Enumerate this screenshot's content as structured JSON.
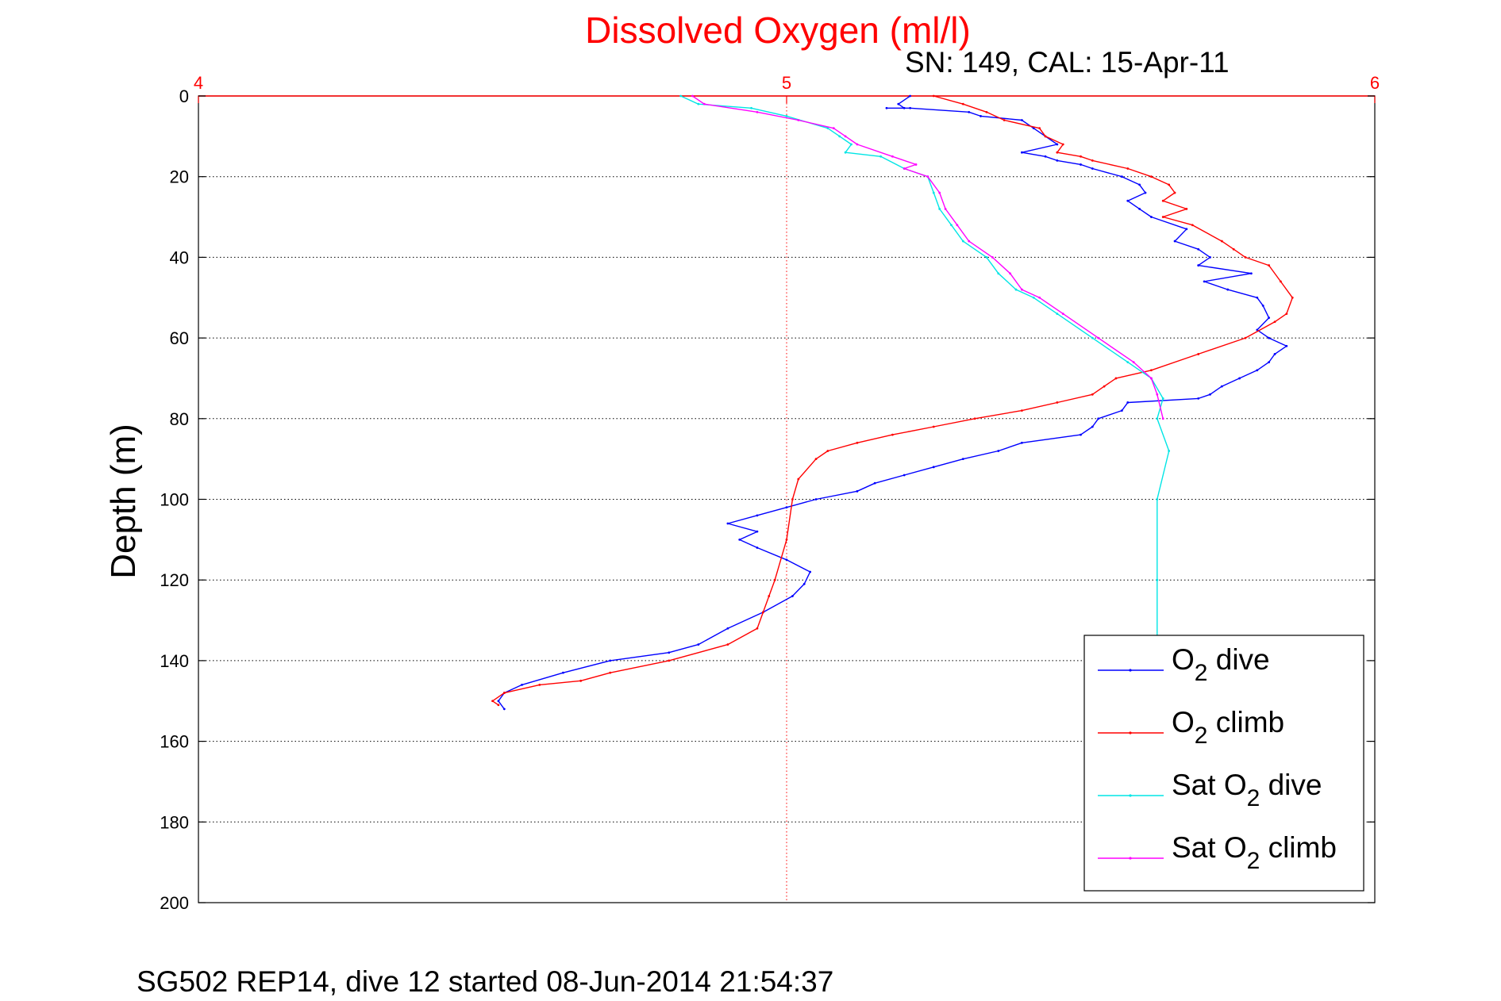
{
  "chart_data": {
    "type": "line",
    "title": "Dissolved Oxygen (ml/l)",
    "subtitle": "SN: 149, CAL: 15-Apr-11",
    "footer": "SG502 REP14, dive 12 started 08-Jun-2014 21:54:37",
    "xlabel": "",
    "ylabel": "Depth (m)",
    "xlim": [
      4,
      6
    ],
    "ylim": [
      0,
      200
    ],
    "y_reversed": true,
    "x_axis_position": "top",
    "xticks": [
      "4",
      "5",
      "6"
    ],
    "yticks": [
      "0",
      "20",
      "40",
      "60",
      "80",
      "100",
      "120",
      "140",
      "160",
      "180",
      "200"
    ],
    "grid": true,
    "legend_position": "bottom-right",
    "colors": {
      "title": "#ff0000",
      "x_axis": "#ff0000",
      "grid_x": "#ff0000",
      "grid_y": "#000000"
    },
    "series": [
      {
        "name": "O2 dive",
        "legend_main": "O",
        "legend_sub": "2",
        "legend_rest": " dive",
        "color": "#0000ff",
        "x": [
          5.21,
          5.19,
          5.2,
          5.17,
          5.21,
          5.31,
          5.33,
          5.4,
          5.42,
          5.44,
          5.46,
          5.4,
          5.44,
          5.46,
          5.5,
          5.52,
          5.57,
          5.6,
          5.61,
          5.58,
          5.6,
          5.62,
          5.68,
          5.66,
          5.7,
          5.72,
          5.7,
          5.79,
          5.71,
          5.75,
          5.8,
          5.81,
          5.82,
          5.8,
          5.82,
          5.85,
          5.83,
          5.82,
          5.8,
          5.77,
          5.74,
          5.72,
          5.7,
          5.58,
          5.57,
          5.53,
          5.52,
          5.5,
          5.4,
          5.36,
          5.3,
          5.25,
          5.2,
          5.15,
          5.12,
          5.05,
          5.0,
          4.95,
          4.9,
          4.95,
          4.92,
          4.95,
          5.0,
          5.04,
          5.03,
          5.01,
          4.96,
          4.9,
          4.85,
          4.8,
          4.7,
          4.62,
          4.55,
          4.52,
          4.51,
          4.52
        ],
        "y": [
          0,
          2,
          3,
          3,
          3,
          4,
          5,
          6,
          8,
          10,
          12,
          14,
          15,
          16,
          17,
          18,
          20,
          22,
          24,
          26,
          28,
          30,
          33,
          36,
          38,
          40,
          42,
          44,
          46,
          48,
          50,
          52,
          55,
          58,
          60,
          62,
          64,
          66,
          68,
          70,
          72,
          74,
          75,
          76,
          78,
          80,
          82,
          84,
          86,
          88,
          90,
          92,
          94,
          96,
          98,
          100,
          102,
          104,
          106,
          108,
          110,
          112,
          115,
          118,
          121,
          124,
          128,
          132,
          136,
          138,
          140,
          143,
          146,
          148,
          150,
          152
        ]
      },
      {
        "name": "O2 climb",
        "legend_main": "O",
        "legend_sub": "2",
        "legend_rest": " climb",
        "color": "#ff0000",
        "x": [
          5.25,
          5.3,
          5.34,
          5.37,
          5.43,
          5.44,
          5.47,
          5.46,
          5.5,
          5.52,
          5.58,
          5.62,
          5.65,
          5.66,
          5.64,
          5.68,
          5.64,
          5.69,
          5.74,
          5.76,
          5.78,
          5.82,
          5.84,
          5.86,
          5.85,
          5.83,
          5.78,
          5.7,
          5.62,
          5.56,
          5.54,
          5.52,
          5.46,
          5.4,
          5.32,
          5.25,
          5.18,
          5.12,
          5.07,
          5.05,
          5.02,
          5.01,
          5.0,
          4.98,
          4.97,
          4.96,
          4.95,
          4.9,
          4.8,
          4.7,
          4.65,
          4.58,
          4.52,
          4.5,
          4.51
        ],
        "y": [
          0,
          2,
          4,
          6,
          8,
          10,
          12,
          14,
          15,
          16,
          18,
          20,
          22,
          24,
          26,
          28,
          30,
          32,
          36,
          38,
          40,
          42,
          46,
          50,
          54,
          56,
          60,
          64,
          68,
          70,
          72,
          74,
          76,
          78,
          80,
          82,
          84,
          86,
          88,
          90,
          95,
          100,
          110,
          120,
          124,
          128,
          132,
          136,
          140,
          143,
          145,
          146,
          148,
          150,
          151
        ]
      },
      {
        "name": "Sat O2 dive",
        "legend_main": "Sat O",
        "legend_sub": "2",
        "legend_rest": " dive",
        "color": "#00e5e5",
        "x": [
          4.82,
          4.85,
          4.94,
          5.0,
          5.07,
          5.09,
          5.11,
          5.1,
          5.16,
          5.2,
          5.24,
          5.25,
          5.26,
          5.28,
          5.3,
          5.34,
          5.36,
          5.39,
          5.42,
          5.46,
          5.52,
          5.58,
          5.62,
          5.64,
          5.63,
          5.65,
          5.63,
          5.63,
          5.63
        ],
        "y": [
          0,
          2,
          3,
          5,
          8,
          10,
          12,
          14,
          15,
          18,
          20,
          24,
          28,
          32,
          36,
          40,
          44,
          48,
          50,
          54,
          60,
          66,
          70,
          75,
          80,
          88,
          100,
          120,
          135
        ]
      },
      {
        "name": "Sat O2 climb",
        "legend_main": "Sat O",
        "legend_sub": "2",
        "legend_rest": " climb",
        "color": "#ff00ff",
        "x": [
          4.84,
          4.86,
          4.95,
          5.02,
          5.08,
          5.1,
          5.12,
          5.18,
          5.22,
          5.2,
          5.24,
          5.26,
          5.27,
          5.29,
          5.31,
          5.35,
          5.38,
          5.4,
          5.43,
          5.47,
          5.53,
          5.59,
          5.62,
          5.63,
          5.64
        ],
        "y": [
          0,
          2,
          4,
          6,
          8,
          10,
          12,
          15,
          17,
          18,
          20,
          24,
          28,
          32,
          36,
          40,
          44,
          48,
          50,
          54,
          60,
          66,
          70,
          74,
          80
        ]
      }
    ]
  }
}
